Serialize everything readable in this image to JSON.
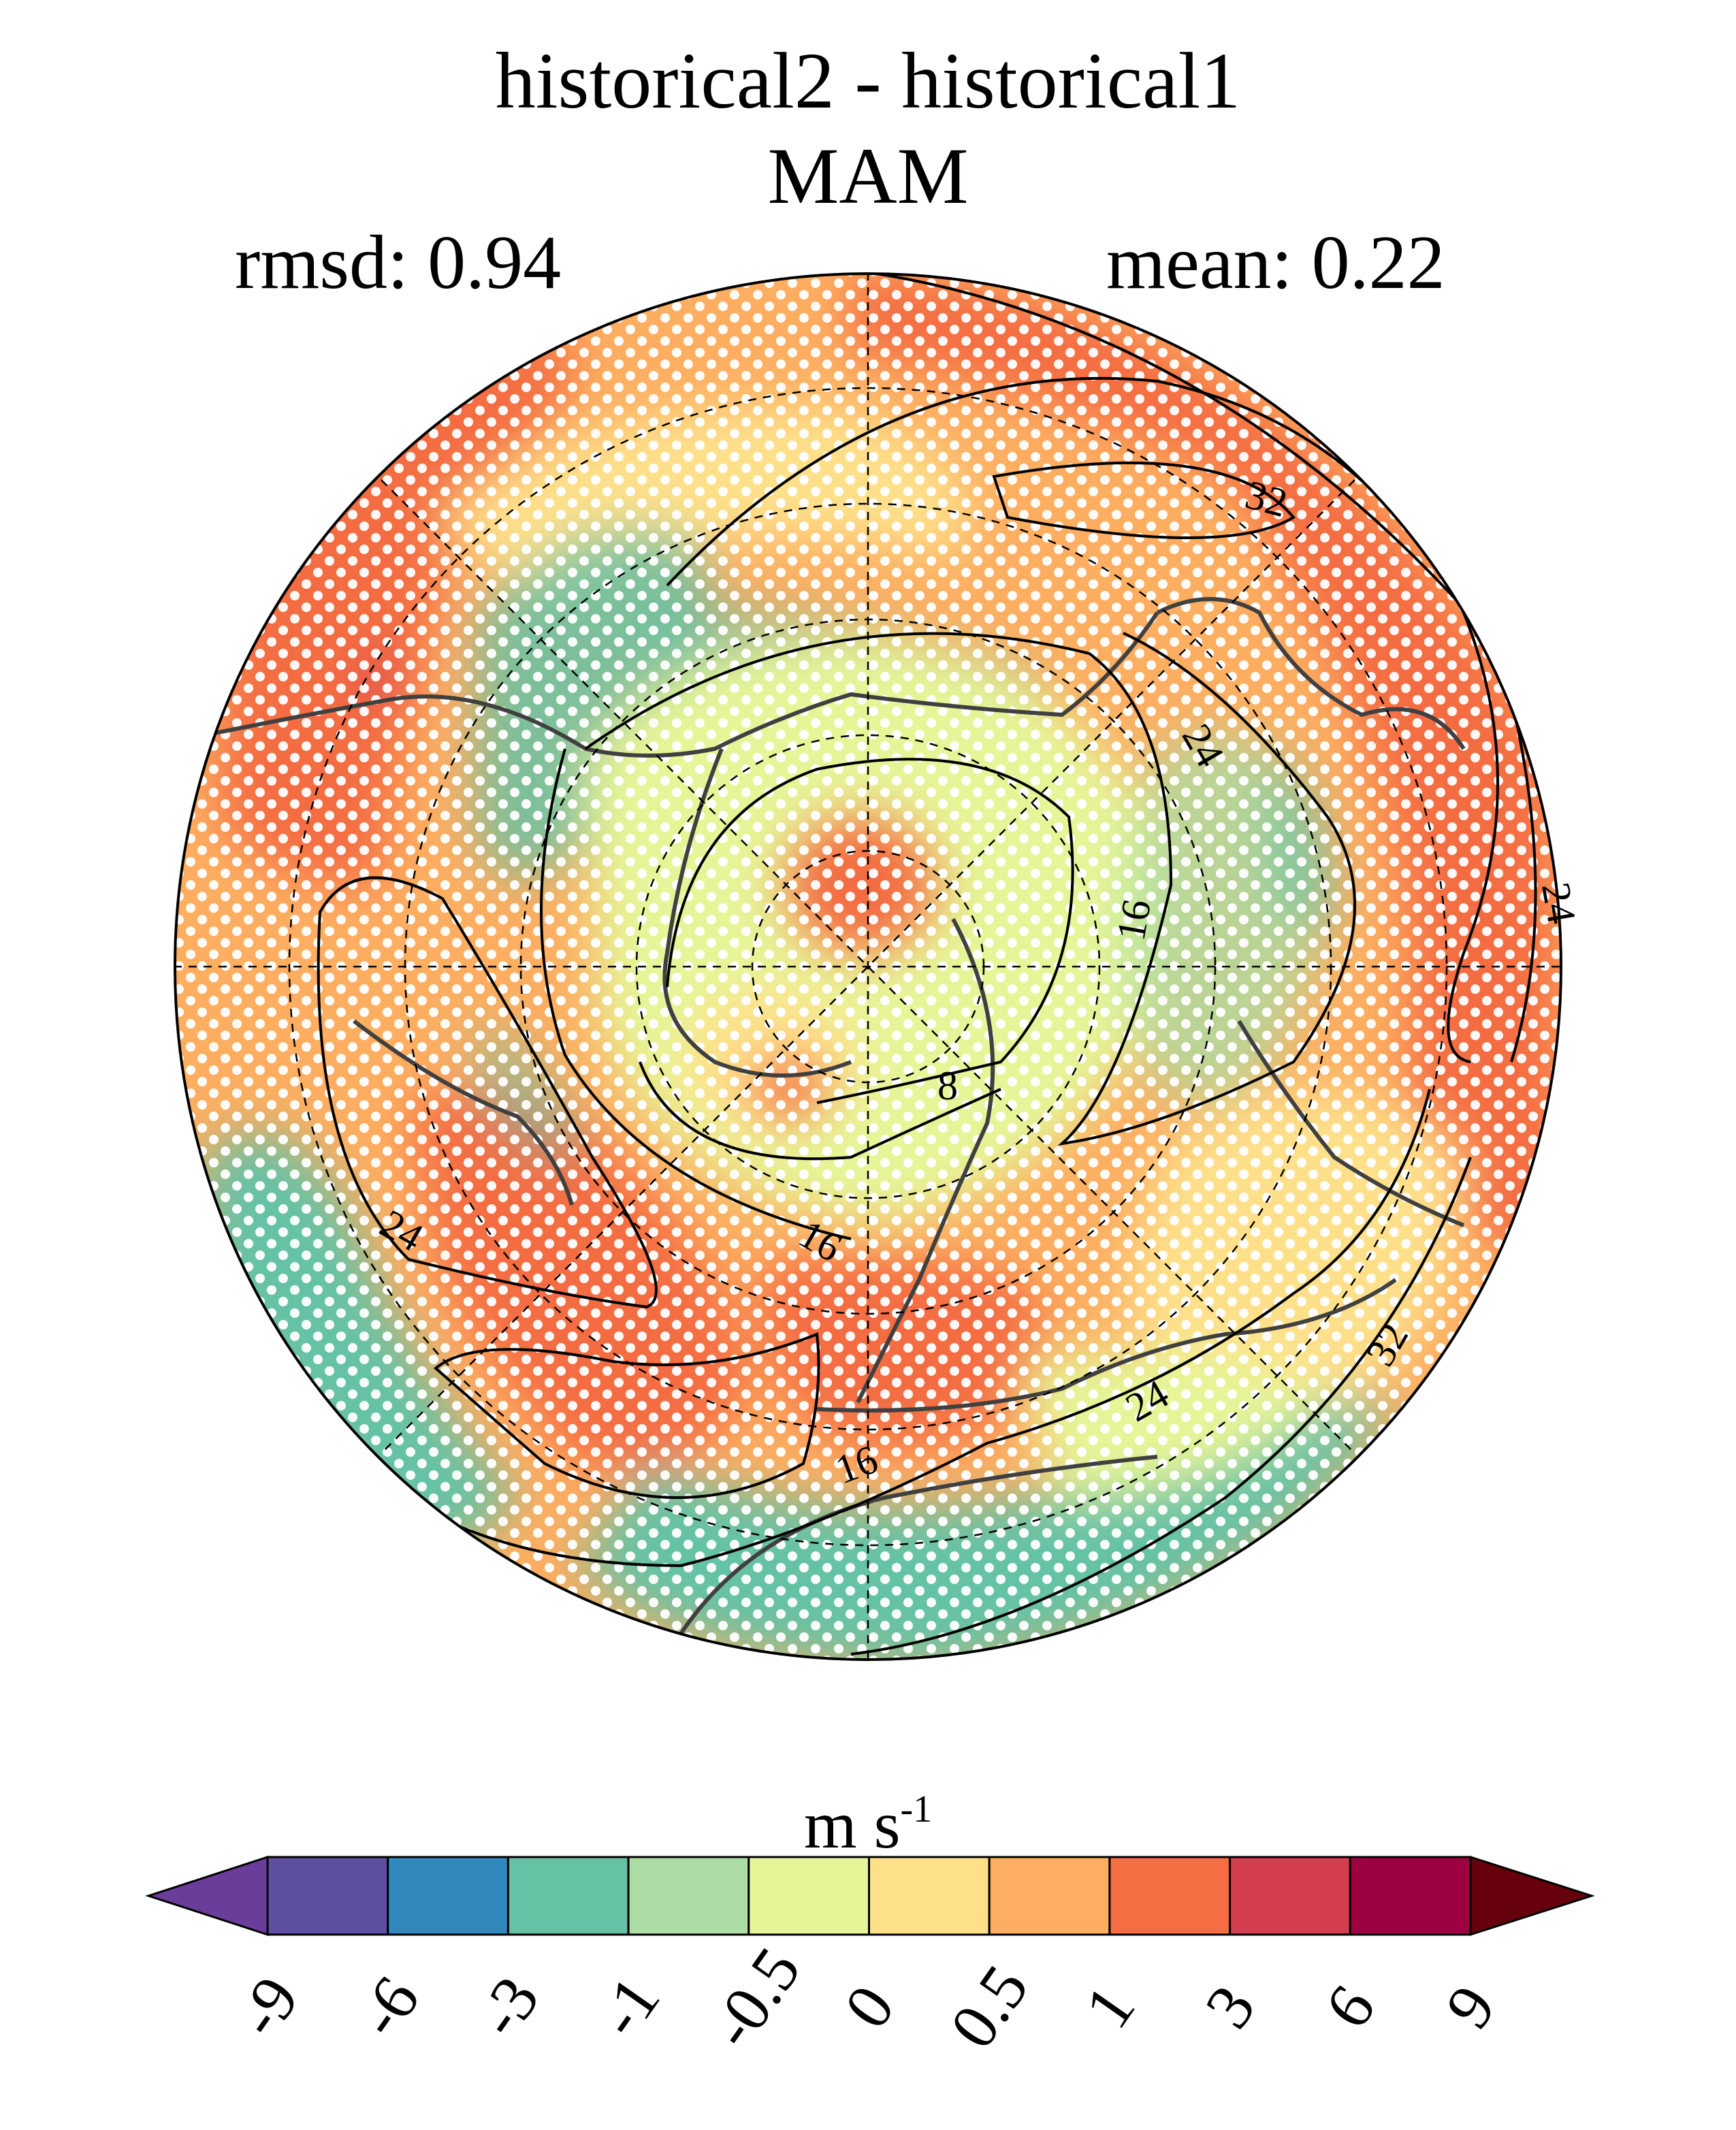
{
  "title": "historical2 - historical1",
  "subtitle": "MAM",
  "rmsd_label": "rmsd: 0.94",
  "mean_label": "mean: 0.22",
  "units": {
    "base": "m s",
    "exp": "-1"
  },
  "colorbar": {
    "levels": [
      "-9",
      "-6",
      "-3",
      "-1",
      "-0.5",
      "0",
      "0.5",
      "1",
      "3",
      "6",
      "9"
    ],
    "colors": [
      "#5e4fa2",
      "#3288bd",
      "#66c2a5",
      "#abdda4",
      "#e6f598",
      "#fee08b",
      "#fdae61",
      "#f46d43",
      "#d53e4f",
      "#9e0142"
    ],
    "under_color": "#6a3d9a",
    "over_color": "#67000d",
    "extend": "both"
  },
  "map": {
    "projection": "north polar stereographic",
    "background_color": "#fdae61",
    "stippling": "white dots",
    "contour_labels": [
      "32",
      "24",
      "16",
      "8",
      "24",
      "16",
      "24",
      "16",
      "24",
      "32"
    ]
  }
}
